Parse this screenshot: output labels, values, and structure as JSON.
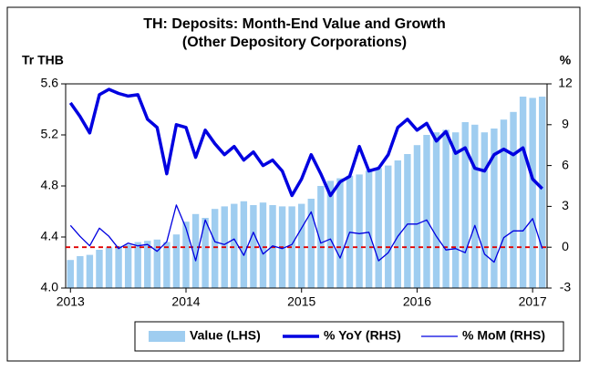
{
  "chart_data": {
    "type": "bar_line",
    "title": "TH: Deposits: Month-End Value and Growth",
    "subtitle": "(Other Depository Corporations)",
    "y_label": "Tr THB",
    "y2_label": "%",
    "categories": [
      "2013",
      null,
      null,
      null,
      null,
      null,
      null,
      null,
      null,
      null,
      null,
      null,
      "2014",
      null,
      null,
      null,
      null,
      null,
      null,
      null,
      null,
      null,
      null,
      null,
      "2015",
      null,
      null,
      null,
      null,
      null,
      null,
      null,
      null,
      null,
      null,
      null,
      "2016",
      null,
      null,
      null,
      null,
      null,
      null,
      null,
      null,
      null,
      null,
      null,
      "2017",
      null
    ],
    "series": [
      {
        "name": "Value (LHS)",
        "type": "bar",
        "color": "#9fcdf0",
        "axis": "y",
        "values": [
          4.22,
          4.25,
          4.26,
          4.3,
          4.32,
          4.33,
          4.34,
          4.36,
          4.37,
          4.38,
          4.36,
          4.42,
          4.52,
          4.58,
          4.55,
          4.62,
          4.64,
          4.66,
          4.68,
          4.65,
          4.67,
          4.65,
          4.64,
          4.64,
          4.66,
          4.7,
          4.8,
          4.84,
          4.86,
          4.88,
          4.89,
          4.92,
          4.94,
          4.96,
          5.0,
          5.05,
          5.12,
          5.2,
          5.22,
          5.24,
          5.22,
          5.3,
          5.28,
          5.22,
          5.25,
          5.32,
          5.38,
          5.5,
          5.49,
          5.5
        ]
      },
      {
        "name": "% YoY (RHS)",
        "type": "line",
        "color": "#0000e0",
        "width": 3.5,
        "axis": "y2",
        "values": [
          10.6,
          9.6,
          8.4,
          11.2,
          11.6,
          11.3,
          11.1,
          11.2,
          9.4,
          8.8,
          5.4,
          9.0,
          8.8,
          6.6,
          8.6,
          7.6,
          6.8,
          7.4,
          6.4,
          7.0,
          6.0,
          6.4,
          5.6,
          3.8,
          5.0,
          6.8,
          5.4,
          3.8,
          4.8,
          5.2,
          7.4,
          5.6,
          5.8,
          6.8,
          8.8,
          9.4,
          8.6,
          9.1,
          7.8,
          8.5,
          6.9,
          7.3,
          5.8,
          5.6,
          6.8,
          7.2,
          6.8,
          7.3,
          5.0,
          4.3
        ]
      },
      {
        "name": "% MoM (RHS)",
        "type": "line",
        "color": "#0000e0",
        "width": 1.3,
        "axis": "y2",
        "values": [
          1.6,
          0.8,
          0.1,
          1.4,
          0.8,
          -0.1,
          0.3,
          0.1,
          0.2,
          -0.3,
          0.4,
          3.1,
          1.4,
          -1.0,
          2.0,
          0.4,
          0.2,
          0.6,
          -0.6,
          1.1,
          -0.5,
          0.1,
          -0.1,
          0.2,
          1.4,
          2.6,
          0.3,
          0.6,
          -0.8,
          1.1,
          1.0,
          1.1,
          -1.0,
          -0.4,
          0.8,
          1.7,
          1.7,
          2.0,
          0.8,
          -0.2,
          -0.1,
          -0.4,
          1.6,
          -0.5,
          -1.1,
          0.7,
          1.2,
          1.2,
          2.1,
          -0.1
        ]
      }
    ],
    "reference_line": {
      "axis": "y2",
      "value": 0,
      "color": "#e00000"
    },
    "ylim": [
      4.0,
      5.6
    ],
    "yticks": [
      {
        "value": 4.0,
        "label": "4.0"
      },
      4.4,
      4.8,
      5.2,
      5.6
    ],
    "y2lim": [
      -3,
      12
    ],
    "y2ticks": [
      -3,
      0,
      3,
      6,
      9,
      12
    ],
    "grid": false,
    "legend": "bottom"
  }
}
